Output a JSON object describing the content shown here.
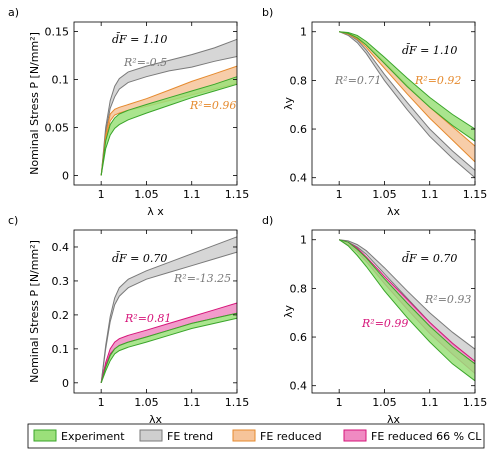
{
  "colors": {
    "experiment_fill": "#9be07a",
    "experiment_line": "#3aa52a",
    "trend_fill": "#cfcfcf",
    "trend_line": "#7a7a7a",
    "reduced_fill": "#f6c49a",
    "reduced_line": "#e58a2e",
    "cl_fill": "#f08ac2",
    "cl_line": "#d6157a"
  },
  "legend": [
    {
      "key": "experiment",
      "label": "Experiment"
    },
    {
      "key": "trend",
      "label": "FE trend"
    },
    {
      "key": "reduced",
      "label": "FE reduced"
    },
    {
      "key": "cl",
      "label": "FE reduced 66 % CL"
    }
  ],
  "chart_data": [
    {
      "panel": "a)",
      "type": "area",
      "xlabel": "λ x",
      "ylabel": "Nominal Stress P [N/mm²]",
      "xlim": [
        0.97,
        1.15
      ],
      "ylim": [
        -0.01,
        0.16
      ],
      "xticks": [
        "1",
        "1.05",
        "1.1",
        "1.15"
      ],
      "yticks": [
        "0",
        "0.05",
        "0.1",
        "0.15"
      ],
      "xtick_values": [
        1,
        1.05,
        1.1,
        1.15
      ],
      "ytick_values": [
        0,
        0.05,
        0.1,
        0.15
      ],
      "ratio_label": "d̄F = 1.10",
      "annotations": [
        {
          "text": "R²=-0.5",
          "color_key": "trend_line"
        },
        {
          "text": "R²=0.96",
          "color_key": "reduced_line"
        }
      ],
      "series": [
        {
          "name": "FE trend",
          "key": "trend",
          "x": [
            1,
            1.005,
            1.01,
            1.015,
            1.02,
            1.03,
            1.05,
            1.075,
            1.1,
            1.125,
            1.15
          ],
          "lower": [
            0,
            0.045,
            0.07,
            0.082,
            0.09,
            0.097,
            0.103,
            0.109,
            0.113,
            0.119,
            0.124
          ],
          "upper": [
            0,
            0.05,
            0.078,
            0.093,
            0.101,
            0.108,
            0.114,
            0.12,
            0.126,
            0.133,
            0.142
          ]
        },
        {
          "name": "FE reduced",
          "key": "reduced",
          "x": [
            1,
            1.005,
            1.01,
            1.015,
            1.02,
            1.03,
            1.05,
            1.075,
            1.1,
            1.125,
            1.15
          ],
          "lower": [
            0,
            0.038,
            0.057,
            0.063,
            0.065,
            0.068,
            0.072,
            0.078,
            0.084,
            0.09,
            0.096
          ],
          "upper": [
            0,
            0.042,
            0.064,
            0.069,
            0.071,
            0.074,
            0.08,
            0.089,
            0.098,
            0.106,
            0.114
          ]
        },
        {
          "name": "Experiment",
          "key": "experiment",
          "x": [
            1,
            1.005,
            1.01,
            1.015,
            1.02,
            1.03,
            1.05,
            1.075,
            1.1,
            1.125,
            1.15
          ],
          "lower": [
            0,
            0.028,
            0.042,
            0.049,
            0.053,
            0.058,
            0.065,
            0.073,
            0.081,
            0.088,
            0.095
          ],
          "upper": [
            0,
            0.036,
            0.053,
            0.06,
            0.064,
            0.068,
            0.074,
            0.081,
            0.088,
            0.095,
            0.103
          ]
        }
      ]
    },
    {
      "panel": "b)",
      "type": "area",
      "xlabel": "λx",
      "ylabel": "λy",
      "xlim": [
        0.97,
        1.15
      ],
      "ylim": [
        0.37,
        1.04
      ],
      "xticks": [
        "1",
        "1.05",
        "1.1",
        "1.15"
      ],
      "yticks": [
        "0.4",
        "0.6",
        "0.8",
        "1"
      ],
      "xtick_values": [
        1,
        1.05,
        1.1,
        1.15
      ],
      "ytick_values": [
        0.4,
        0.6,
        0.8,
        1.0
      ],
      "ratio_label": "d̄F = 1.10",
      "annotations": [
        {
          "text": "R²=0.71",
          "color_key": "trend_line"
        },
        {
          "text": "R²=0.92",
          "color_key": "reduced_line"
        }
      ],
      "series": [
        {
          "name": "FE trend",
          "key": "trend",
          "x": [
            1,
            1.01,
            1.02,
            1.03,
            1.05,
            1.075,
            1.1,
            1.125,
            1.15
          ],
          "lower": [
            1.0,
            0.985,
            0.955,
            0.91,
            0.8,
            0.68,
            0.57,
            0.48,
            0.4
          ],
          "upper": [
            1.0,
            0.99,
            0.965,
            0.925,
            0.825,
            0.71,
            0.6,
            0.51,
            0.43
          ]
        },
        {
          "name": "FE reduced",
          "key": "reduced",
          "x": [
            1,
            1.01,
            1.02,
            1.03,
            1.05,
            1.075,
            1.1,
            1.125,
            1.15
          ],
          "lower": [
            1.0,
            0.99,
            0.97,
            0.935,
            0.85,
            0.745,
            0.645,
            0.555,
            0.465
          ],
          "upper": [
            1.0,
            0.995,
            0.98,
            0.95,
            0.875,
            0.78,
            0.69,
            0.61,
            0.53
          ]
        },
        {
          "name": "Experiment",
          "key": "experiment",
          "x": [
            1,
            1.01,
            1.02,
            1.03,
            1.05,
            1.075,
            1.1,
            1.125,
            1.15
          ],
          "lower": [
            1.0,
            0.993,
            0.975,
            0.945,
            0.87,
            0.775,
            0.69,
            0.615,
            0.55
          ],
          "upper": [
            1.0,
            0.997,
            0.985,
            0.96,
            0.895,
            0.81,
            0.73,
            0.66,
            0.6
          ]
        }
      ]
    },
    {
      "panel": "c)",
      "type": "area",
      "xlabel": "λx",
      "ylabel": "Nominal Stress P [N/mm²]",
      "xlim": [
        0.97,
        1.15
      ],
      "ylim": [
        -0.03,
        0.45
      ],
      "xticks": [
        "1",
        "1.05",
        "1.1",
        "1.15"
      ],
      "yticks": [
        "0",
        "0.1",
        "0.2",
        "0.3",
        "0.4"
      ],
      "xtick_values": [
        1,
        1.05,
        1.1,
        1.15
      ],
      "ytick_values": [
        0,
        0.1,
        0.2,
        0.3,
        0.4
      ],
      "ratio_label": "d̄F = 0.70",
      "annotations": [
        {
          "text": "R²=-13.25",
          "color_key": "trend_line"
        },
        {
          "text": "R²=0.81",
          "color_key": "cl_line"
        }
      ],
      "series": [
        {
          "name": "FE trend",
          "key": "trend",
          "x": [
            1,
            1.005,
            1.01,
            1.015,
            1.02,
            1.03,
            1.05,
            1.075,
            1.1,
            1.125,
            1.15
          ],
          "lower": [
            0,
            0.1,
            0.18,
            0.23,
            0.255,
            0.28,
            0.305,
            0.325,
            0.345,
            0.365,
            0.385
          ],
          "upper": [
            0,
            0.11,
            0.195,
            0.25,
            0.28,
            0.305,
            0.33,
            0.355,
            0.38,
            0.405,
            0.43
          ]
        },
        {
          "name": "FE reduced 66 % CL",
          "key": "cl",
          "x": [
            1,
            1.005,
            1.01,
            1.015,
            1.02,
            1.03,
            1.05,
            1.075,
            1.1,
            1.125,
            1.15
          ],
          "lower": [
            0,
            0.05,
            0.085,
            0.1,
            0.11,
            0.12,
            0.135,
            0.155,
            0.175,
            0.19,
            0.205
          ],
          "upper": [
            0,
            0.06,
            0.1,
            0.12,
            0.13,
            0.14,
            0.155,
            0.175,
            0.195,
            0.215,
            0.235
          ]
        },
        {
          "name": "Experiment",
          "key": "experiment",
          "x": [
            1,
            1.005,
            1.01,
            1.015,
            1.02,
            1.03,
            1.05,
            1.075,
            1.1,
            1.125,
            1.15
          ],
          "lower": [
            0,
            0.035,
            0.065,
            0.085,
            0.095,
            0.105,
            0.12,
            0.14,
            0.16,
            0.175,
            0.19
          ],
          "upper": [
            0,
            0.045,
            0.08,
            0.1,
            0.11,
            0.12,
            0.135,
            0.155,
            0.175,
            0.19,
            0.205
          ]
        }
      ]
    },
    {
      "panel": "d)",
      "type": "area",
      "xlabel": "λx",
      "ylabel": "λy",
      "xlim": [
        0.97,
        1.15
      ],
      "ylim": [
        0.37,
        1.04
      ],
      "xticks": [
        "1",
        "1.05",
        "1.1",
        "1.15"
      ],
      "yticks": [
        "0.4",
        "0.6",
        "0.8",
        "1"
      ],
      "xtick_values": [
        1,
        1.05,
        1.1,
        1.15
      ],
      "ytick_values": [
        0.4,
        0.6,
        0.8,
        1.0
      ],
      "ratio_label": "d̄F = 0.70",
      "annotations": [
        {
          "text": "R²=0.93",
          "color_key": "trend_line"
        },
        {
          "text": "R²=0.99",
          "color_key": "cl_line"
        }
      ],
      "series": [
        {
          "name": "FE trend",
          "key": "trend",
          "x": [
            1,
            1.01,
            1.02,
            1.03,
            1.05,
            1.075,
            1.1,
            1.125,
            1.15
          ],
          "lower": [
            1.0,
            0.99,
            0.97,
            0.94,
            0.86,
            0.76,
            0.66,
            0.57,
            0.5
          ],
          "upper": [
            1.0,
            0.995,
            0.98,
            0.955,
            0.885,
            0.79,
            0.7,
            0.62,
            0.55
          ]
        },
        {
          "name": "FE reduced 66 % CL",
          "key": "cl",
          "x": [
            1,
            1.01,
            1.02,
            1.03,
            1.05,
            1.075,
            1.1,
            1.125,
            1.15
          ],
          "lower": [
            1.0,
            0.98,
            0.95,
            0.91,
            0.82,
            0.715,
            0.615,
            0.53,
            0.45
          ],
          "upper": [
            1.0,
            0.99,
            0.965,
            0.93,
            0.85,
            0.755,
            0.66,
            0.575,
            0.5
          ]
        },
        {
          "name": "Experiment",
          "key": "experiment",
          "x": [
            1,
            1.01,
            1.02,
            1.03,
            1.05,
            1.075,
            1.1,
            1.125,
            1.15
          ],
          "lower": [
            1.0,
            0.975,
            0.935,
            0.89,
            0.79,
            0.68,
            0.58,
            0.49,
            0.42
          ],
          "upper": [
            1.0,
            0.99,
            0.96,
            0.925,
            0.84,
            0.74,
            0.645,
            0.56,
            0.49
          ]
        }
      ]
    }
  ]
}
